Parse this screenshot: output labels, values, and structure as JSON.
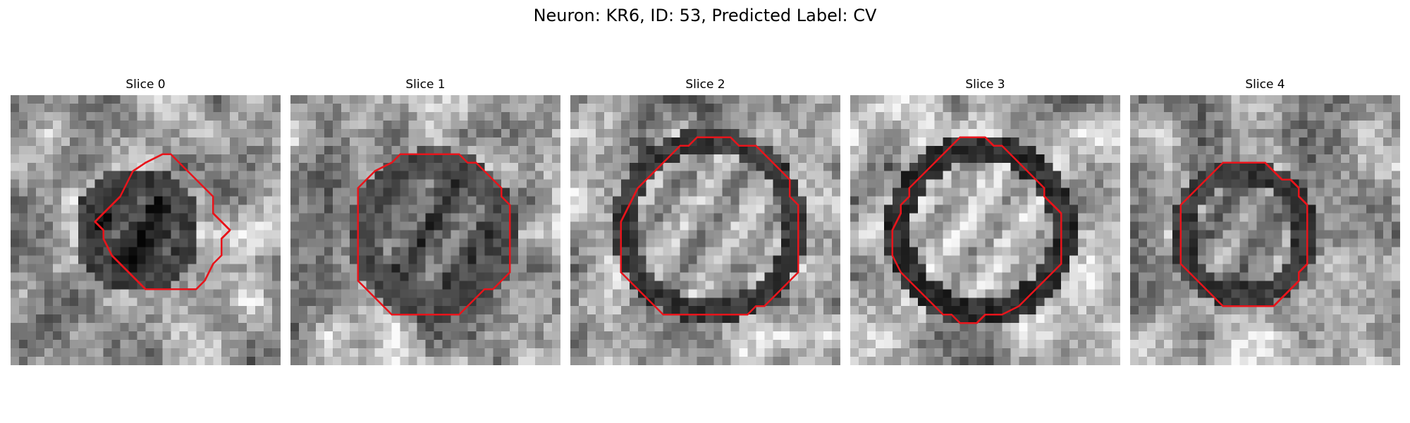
{
  "figure": {
    "title": "Neuron: KR6, ID: 53, Predicted Label: CV"
  },
  "panels": [
    {
      "title": "Slice 0"
    },
    {
      "title": "Slice 1"
    },
    {
      "title": "Slice 2"
    },
    {
      "title": "Slice 3"
    },
    {
      "title": "Slice 4"
    }
  ],
  "colors": {
    "contour": "#e8141b",
    "background": "#ffffff"
  }
}
